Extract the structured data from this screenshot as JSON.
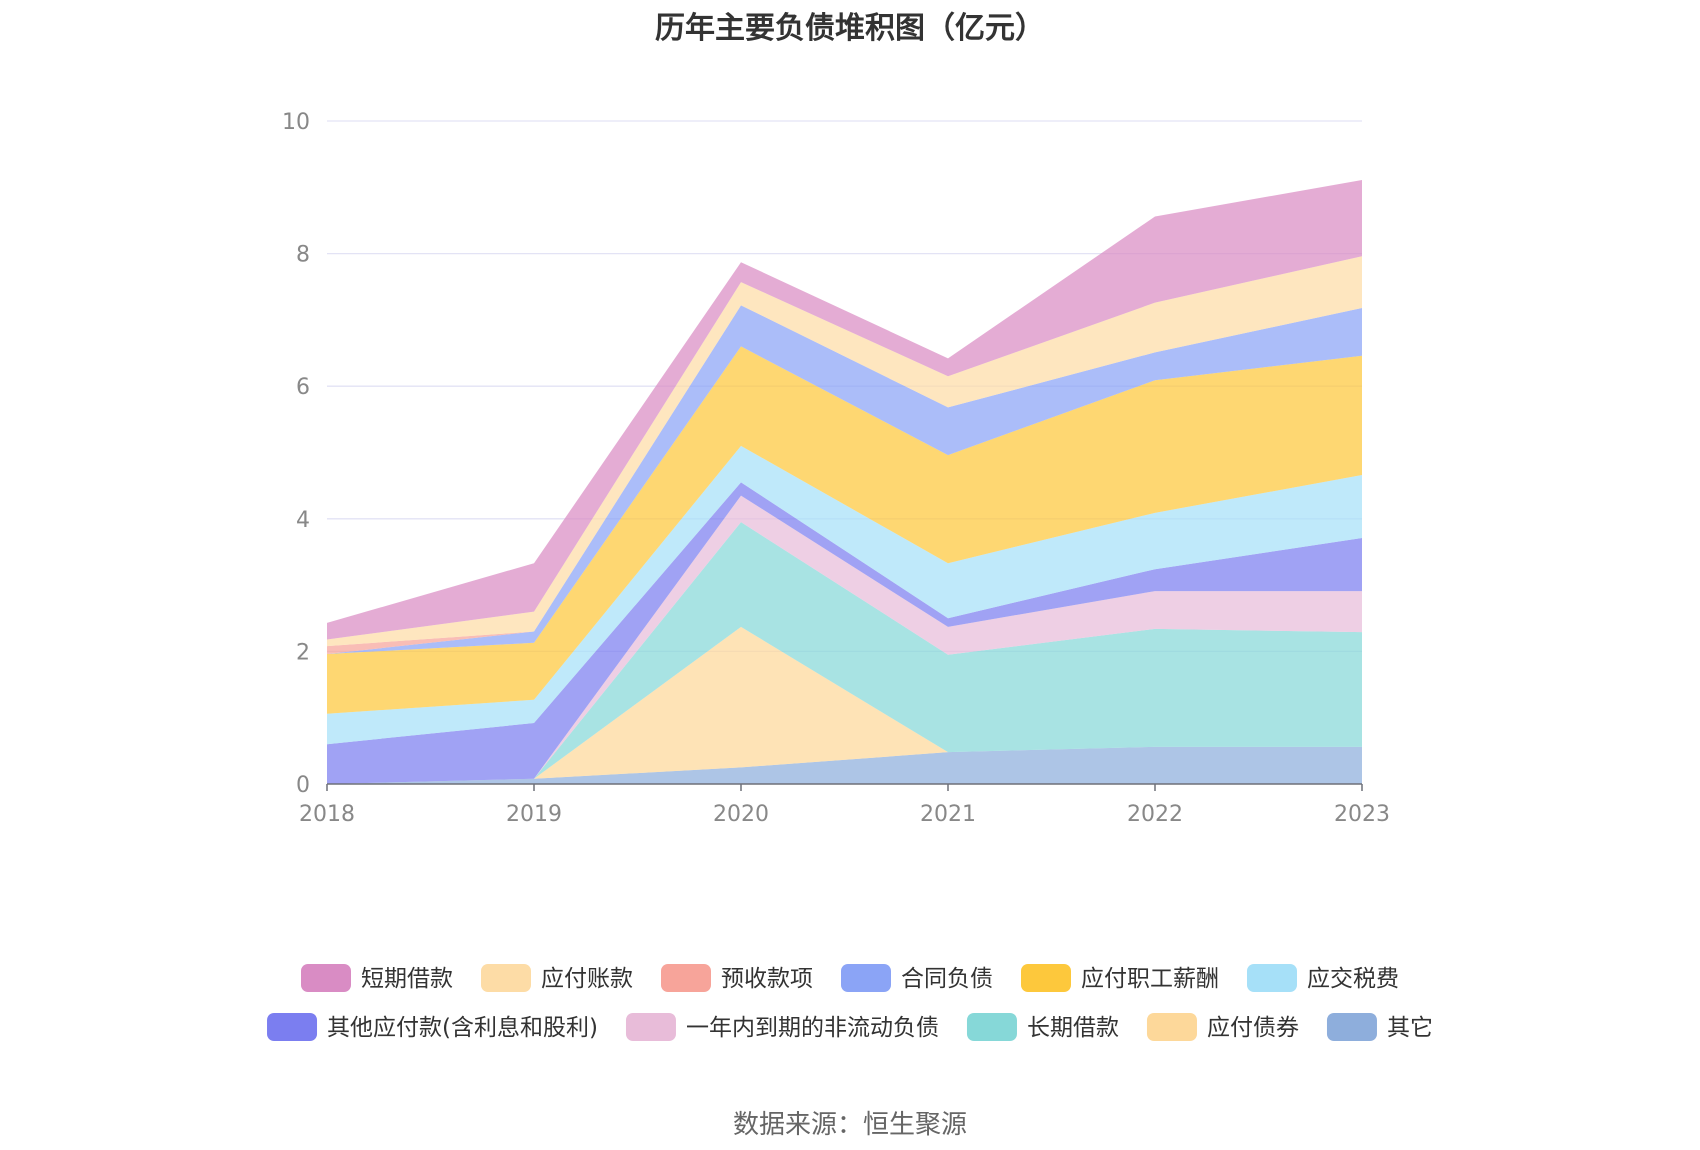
{
  "chart_data": {
    "type": "area",
    "stacked": true,
    "title": "历年主要负债堆积图（亿元）",
    "x": [
      "2018",
      "2019",
      "2020",
      "2021",
      "2022",
      "2023"
    ],
    "ylim": [
      0,
      10
    ],
    "yticks": [
      0,
      2,
      4,
      6,
      8,
      10
    ],
    "grid": true,
    "legend_position": "bottom",
    "series": [
      {
        "name": "其它",
        "color": "#8eaedc",
        "values": [
          0.0,
          0.08,
          0.25,
          0.48,
          0.56,
          0.56
        ]
      },
      {
        "name": "应付债券",
        "color": "#fdd89a",
        "values": [
          0.0,
          0.0,
          2.12,
          0.0,
          0.0,
          0.0
        ]
      },
      {
        "name": "长期借款",
        "color": "#86d8d8",
        "values": [
          0.0,
          0.0,
          1.58,
          1.47,
          1.78,
          1.73
        ]
      },
      {
        "name": "一年内到期的非流动负债",
        "color": "#e8bcd9",
        "values": [
          0.0,
          0.0,
          0.4,
          0.42,
          0.57,
          0.62
        ]
      },
      {
        "name": "其他应付款(含利息和股利)",
        "color": "#7b7ef0",
        "values": [
          0.6,
          0.84,
          0.2,
          0.13,
          0.33,
          0.8
        ]
      },
      {
        "name": "应交税费",
        "color": "#a6e0f8",
        "values": [
          0.46,
          0.35,
          0.55,
          0.83,
          0.85,
          0.95
        ]
      },
      {
        "name": "应付职工薪酬",
        "color": "#fdc83c",
        "values": [
          0.9,
          0.86,
          1.5,
          1.63,
          2.0,
          1.8
        ]
      },
      {
        "name": "合同负债",
        "color": "#8ba4f6",
        "values": [
          0.0,
          0.17,
          0.62,
          0.72,
          0.42,
          0.72
        ]
      },
      {
        "name": "预收款项",
        "color": "#f7a49a",
        "values": [
          0.12,
          0.0,
          0.0,
          0.0,
          0.0,
          0.0
        ]
      },
      {
        "name": "应付账款",
        "color": "#fddca6",
        "values": [
          0.1,
          0.3,
          0.35,
          0.47,
          0.75,
          0.78
        ]
      },
      {
        "name": "短期借款",
        "color": "#d98cc4",
        "values": [
          0.25,
          0.73,
          0.3,
          0.27,
          1.3,
          1.15
        ]
      }
    ]
  },
  "legend": {
    "rows": [
      [
        "短期借款",
        "应付账款",
        "预收款项",
        "合同负债",
        "应付职工薪酬",
        "应交税费"
      ],
      [
        "其他应付款(含利息和股利)",
        "一年内到期的非流动负债",
        "长期借款",
        "应付债券",
        "其它"
      ]
    ]
  },
  "source": "数据来源：恒生聚源"
}
